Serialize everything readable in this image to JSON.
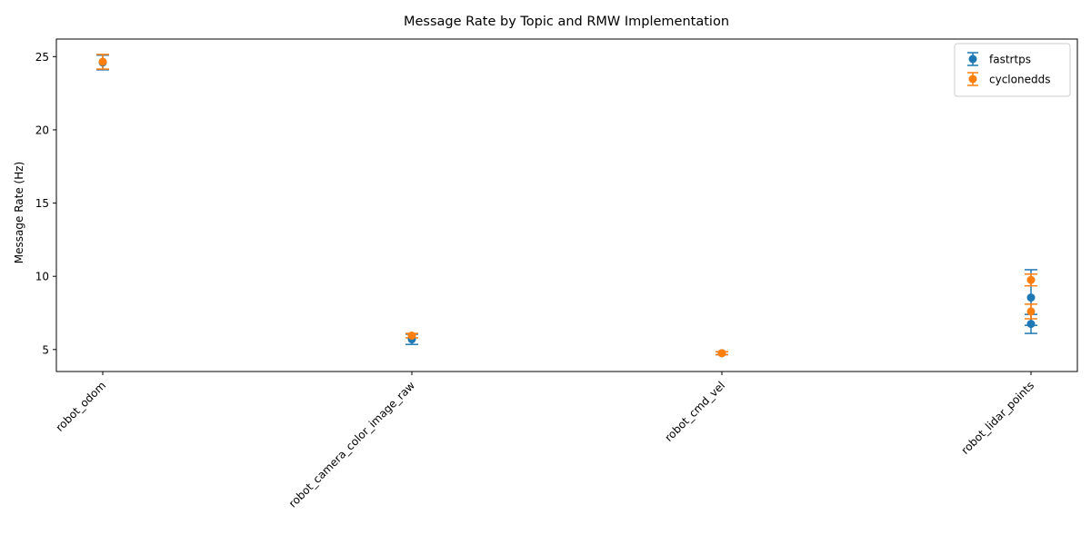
{
  "chart_data": {
    "type": "scatter",
    "title": "Message Rate by Topic and RMW Implementation",
    "xlabel": "",
    "ylabel": "Message Rate (Hz)",
    "categories": [
      "robot_odom",
      "robot_camera_color_image_raw",
      "robot_cmd_vel",
      "robot_lidar_points"
    ],
    "ylim": [
      3.5,
      26.2
    ],
    "yticks": [
      5,
      10,
      15,
      20,
      25
    ],
    "grid": false,
    "legend": "top-right",
    "series": [
      {
        "name": "fastrtps",
        "color": "#1f77b4",
        "points": [
          {
            "category": "robot_odom",
            "y": 24.6,
            "err": 0.5
          },
          {
            "category": "robot_camera_color_image_raw",
            "y": 5.7,
            "err": 0.35
          },
          {
            "category": "robot_cmd_vel",
            "y": 4.75,
            "err": 0.1
          },
          {
            "category": "robot_lidar_points",
            "y": 8.55,
            "err": 1.9
          },
          {
            "category": "robot_lidar_points",
            "y": 6.75,
            "err": 0.65
          }
        ]
      },
      {
        "name": "cyclonedds",
        "color": "#ff7f0e",
        "points": [
          {
            "category": "robot_odom",
            "y": 24.65,
            "err": 0.5
          },
          {
            "category": "robot_camera_color_image_raw",
            "y": 5.95,
            "err": 0.15
          },
          {
            "category": "robot_cmd_vel",
            "y": 4.75,
            "err": 0.1
          },
          {
            "category": "robot_lidar_points",
            "y": 9.75,
            "err": 0.4
          },
          {
            "category": "robot_lidar_points",
            "y": 7.6,
            "err": 0.5
          }
        ]
      }
    ]
  }
}
